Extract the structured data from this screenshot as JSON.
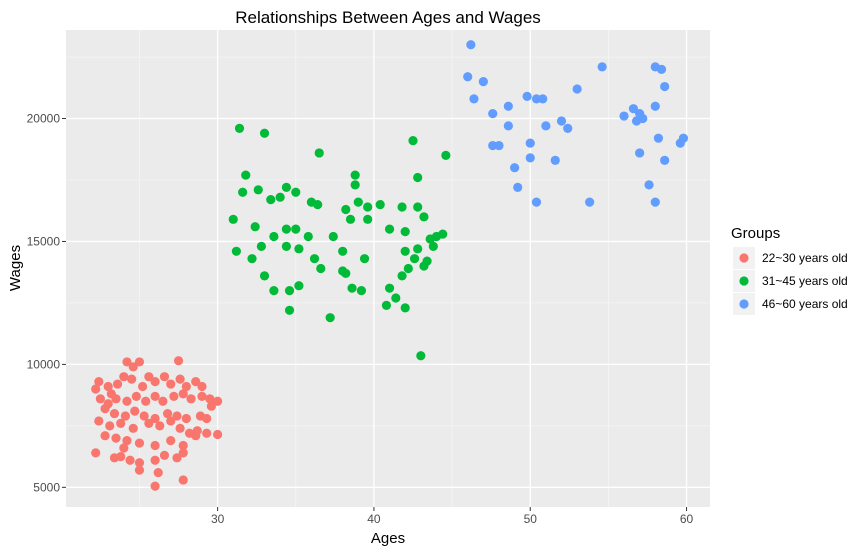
{
  "chart_data": {
    "type": "scatter",
    "title": "Relationships Between Ages and Wages",
    "xlabel": "Ages",
    "ylabel": "Wages",
    "xlim": [
      20.3,
      61.5
    ],
    "ylim": [
      4200,
      23600
    ],
    "x_major_ticks": [
      30,
      40,
      50,
      60
    ],
    "x_minor_ticks": [
      25,
      35,
      45,
      55
    ],
    "y_major_ticks": [
      5000,
      10000,
      15000,
      20000
    ],
    "y_minor_ticks": [
      7500,
      12500,
      17500,
      22500
    ],
    "grid": true,
    "legend": {
      "title": "Groups",
      "placement": "right",
      "entries": [
        "22~30 years old",
        "31~45 years old",
        "46~60 years old"
      ]
    },
    "series": [
      {
        "name": "22~30 years old",
        "color": "#F8766D",
        "points": [
          [
            24.2,
            10100
          ],
          [
            24.6,
            9900
          ],
          [
            25.0,
            10100
          ],
          [
            27.5,
            10150
          ],
          [
            25.6,
            9500
          ],
          [
            22.2,
            9000
          ],
          [
            22.4,
            9300
          ],
          [
            23.0,
            9100
          ],
          [
            23.2,
            8800
          ],
          [
            23.6,
            9200
          ],
          [
            24.0,
            9500
          ],
          [
            24.5,
            9400
          ],
          [
            25.2,
            9100
          ],
          [
            26.0,
            9300
          ],
          [
            26.6,
            9500
          ],
          [
            27.0,
            9200
          ],
          [
            27.6,
            9400
          ],
          [
            28.0,
            9100
          ],
          [
            28.6,
            9300
          ],
          [
            29.0,
            9100
          ],
          [
            22.5,
            8600
          ],
          [
            23.0,
            8400
          ],
          [
            23.5,
            8600
          ],
          [
            24.2,
            8500
          ],
          [
            24.8,
            8700
          ],
          [
            25.4,
            8500
          ],
          [
            26.0,
            8700
          ],
          [
            26.5,
            8500
          ],
          [
            27.2,
            8700
          ],
          [
            27.8,
            8800
          ],
          [
            28.3,
            8600
          ],
          [
            29.0,
            8700
          ],
          [
            29.5,
            8600
          ],
          [
            30.0,
            8500
          ],
          [
            29.6,
            8300
          ],
          [
            22.8,
            8200
          ],
          [
            23.4,
            8000
          ],
          [
            24.1,
            7900
          ],
          [
            24.7,
            8100
          ],
          [
            25.3,
            7900
          ],
          [
            26.0,
            7800
          ],
          [
            26.8,
            8000
          ],
          [
            27.4,
            7900
          ],
          [
            28.0,
            7800
          ],
          [
            28.9,
            7900
          ],
          [
            29.3,
            7800
          ],
          [
            22.4,
            7700
          ],
          [
            23.1,
            7500
          ],
          [
            23.8,
            7600
          ],
          [
            24.6,
            7400
          ],
          [
            25.6,
            7600
          ],
          [
            26.3,
            7500
          ],
          [
            27.0,
            7700
          ],
          [
            27.6,
            7400
          ],
          [
            28.2,
            7200
          ],
          [
            28.7,
            7300
          ],
          [
            29.3,
            7200
          ],
          [
            30.0,
            7150
          ],
          [
            22.8,
            7100
          ],
          [
            23.5,
            7000
          ],
          [
            24.2,
            6900
          ],
          [
            25.0,
            6800
          ],
          [
            26.0,
            6700
          ],
          [
            27.0,
            6900
          ],
          [
            27.8,
            6700
          ],
          [
            28.6,
            7100
          ],
          [
            22.2,
            6400
          ],
          [
            23.4,
            6200
          ],
          [
            23.8,
            6250
          ],
          [
            24.4,
            6100
          ],
          [
            25.0,
            6000
          ],
          [
            26.0,
            6100
          ],
          [
            27.4,
            6200
          ],
          [
            27.8,
            6400
          ],
          [
            25.0,
            5700
          ],
          [
            26.2,
            5600
          ],
          [
            26.0,
            5050
          ],
          [
            27.8,
            5300
          ],
          [
            24.0,
            6600
          ],
          [
            26.6,
            6300
          ]
        ]
      },
      {
        "name": "31~45 years old",
        "color": "#00BA38",
        "points": [
          [
            31.4,
            19600
          ],
          [
            33.0,
            19400
          ],
          [
            36.5,
            18600
          ],
          [
            42.5,
            19100
          ],
          [
            44.6,
            18500
          ],
          [
            31.8,
            17700
          ],
          [
            31.6,
            17000
          ],
          [
            32.6,
            17100
          ],
          [
            33.4,
            16700
          ],
          [
            34.0,
            16800
          ],
          [
            34.4,
            17200
          ],
          [
            35.0,
            17000
          ],
          [
            36.0,
            16600
          ],
          [
            36.4,
            16500
          ],
          [
            38.8,
            17700
          ],
          [
            38.8,
            17300
          ],
          [
            39.0,
            16600
          ],
          [
            39.6,
            16400
          ],
          [
            40.4,
            16500
          ],
          [
            38.2,
            16300
          ],
          [
            38.5,
            15900
          ],
          [
            41.8,
            16400
          ],
          [
            42.8,
            17600
          ],
          [
            42.8,
            16400
          ],
          [
            43.2,
            16000
          ],
          [
            31.0,
            15900
          ],
          [
            32.4,
            15600
          ],
          [
            33.6,
            15200
          ],
          [
            34.4,
            15500
          ],
          [
            35.0,
            15500
          ],
          [
            35.8,
            15200
          ],
          [
            37.4,
            15200
          ],
          [
            39.6,
            15900
          ],
          [
            41.0,
            15500
          ],
          [
            42.0,
            15400
          ],
          [
            43.6,
            15100
          ],
          [
            44.0,
            15200
          ],
          [
            44.4,
            15300
          ],
          [
            43.8,
            14800
          ],
          [
            31.2,
            14600
          ],
          [
            32.8,
            14800
          ],
          [
            32.2,
            14300
          ],
          [
            34.4,
            14800
          ],
          [
            35.2,
            14700
          ],
          [
            36.2,
            14300
          ],
          [
            38.0,
            14600
          ],
          [
            39.4,
            14300
          ],
          [
            42.0,
            14600
          ],
          [
            42.8,
            14700
          ],
          [
            43.4,
            14200
          ],
          [
            33.0,
            13600
          ],
          [
            33.6,
            13000
          ],
          [
            34.6,
            13000
          ],
          [
            35.2,
            13200
          ],
          [
            36.6,
            13900
          ],
          [
            38.0,
            13800
          ],
          [
            38.2,
            13700
          ],
          [
            38.6,
            13100
          ],
          [
            39.2,
            13000
          ],
          [
            41.0,
            13100
          ],
          [
            41.4,
            12700
          ],
          [
            41.8,
            13600
          ],
          [
            42.2,
            13900
          ],
          [
            40.8,
            12400
          ],
          [
            42.0,
            12300
          ],
          [
            34.6,
            12200
          ],
          [
            37.2,
            11900
          ],
          [
            43.0,
            10350
          ],
          [
            43.2,
            14000
          ],
          [
            42.6,
            14300
          ]
        ]
      },
      {
        "name": "46~60 years old",
        "color": "#619CFF",
        "points": [
          [
            46.2,
            23000
          ],
          [
            46.0,
            21700
          ],
          [
            47.0,
            21500
          ],
          [
            46.4,
            20800
          ],
          [
            47.6,
            20200
          ],
          [
            48.6,
            20500
          ],
          [
            49.8,
            20900
          ],
          [
            50.4,
            20800
          ],
          [
            50.8,
            20800
          ],
          [
            53.0,
            21200
          ],
          [
            54.6,
            22100
          ],
          [
            58.0,
            22100
          ],
          [
            58.4,
            22000
          ],
          [
            58.6,
            21300
          ],
          [
            48.6,
            19700
          ],
          [
            48.0,
            18900
          ],
          [
            47.6,
            18900
          ],
          [
            49.0,
            18000
          ],
          [
            50.0,
            19000
          ],
          [
            50.0,
            18400
          ],
          [
            51.0,
            19700
          ],
          [
            52.0,
            19900
          ],
          [
            52.4,
            19600
          ],
          [
            51.6,
            18300
          ],
          [
            49.2,
            17200
          ],
          [
            50.4,
            16600
          ],
          [
            53.8,
            16600
          ],
          [
            56.0,
            20100
          ],
          [
            56.6,
            20400
          ],
          [
            56.8,
            19900
          ],
          [
            57.0,
            20200
          ],
          [
            57.2,
            20000
          ],
          [
            58.0,
            20500
          ],
          [
            58.2,
            19200
          ],
          [
            57.0,
            18600
          ],
          [
            57.6,
            17300
          ],
          [
            58.6,
            18300
          ],
          [
            59.6,
            19000
          ],
          [
            59.8,
            19200
          ],
          [
            58.0,
            16600
          ]
        ]
      }
    ]
  }
}
